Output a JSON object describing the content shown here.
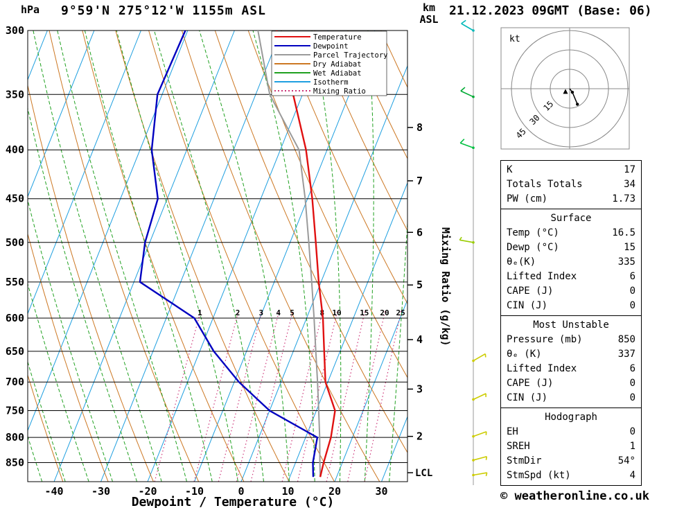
{
  "header": {
    "pressure_unit": "hPa",
    "station_title": "9°59'N 275°12'W 1155m ASL",
    "datetime_title": "21.12.2023 09GMT (Base: 06)",
    "altitude_unit_line1": "km",
    "altitude_unit_line2": "ASL"
  },
  "footer": {
    "credit": "© weatheronline.co.uk"
  },
  "colors": {
    "temperature": "#e01010",
    "dewpoint": "#0000c0",
    "parcel": "#9a9a9a",
    "dry_adiabat": "#cc7722",
    "wet_adiabat": "#1fa01f",
    "isotherm": "#1e9fe0",
    "mixing_ratio": "#cc3377",
    "pressure_line": "#000000",
    "wind_column": "#999999",
    "hodograph_grid": "#888888"
  },
  "legend": {
    "items": [
      {
        "label": "Temperature",
        "color": "#e01010",
        "dash": ""
      },
      {
        "label": "Dewpoint",
        "color": "#0000c0",
        "dash": ""
      },
      {
        "label": "Parcel Trajectory",
        "color": "#9a9a9a",
        "dash": ""
      },
      {
        "label": "Dry Adiabat",
        "color": "#cc7722",
        "dash": ""
      },
      {
        "label": "Wet Adiabat",
        "color": "#1fa01f",
        "dash": ""
      },
      {
        "label": "Isotherm",
        "color": "#1e9fe0",
        "dash": ""
      },
      {
        "label": "Mixing Ratio",
        "color": "#cc3377",
        "dash": "2,3"
      }
    ]
  },
  "axes": {
    "pressure_ticks": [
      300,
      350,
      400,
      450,
      500,
      550,
      600,
      650,
      700,
      750,
      800,
      850
    ],
    "temp_ticks": [
      -40,
      -30,
      -20,
      -10,
      0,
      10,
      20,
      30
    ],
    "x_title": "Dewpoint / Temperature (°C)",
    "mixing_ratio_axis_title": "Mixing Ratio (g/kg)",
    "km_ticks": [
      {
        "km": 8,
        "p": 379
      },
      {
        "km": 7,
        "p": 431
      },
      {
        "km": 6,
        "p": 488
      },
      {
        "km": 5,
        "p": 554
      },
      {
        "km": 4,
        "p": 632
      },
      {
        "km": 3,
        "p": 712
      },
      {
        "km": 2,
        "p": 798
      }
    ],
    "lcl": {
      "label": "LCL",
      "p": 871
    }
  },
  "chart_data": {
    "type": "skewt_sounding",
    "pressure_range_hpa": [
      300,
      890
    ],
    "temp_axis_range_c": [
      -45,
      35
    ],
    "isotherm_step_c": 10,
    "pressure_hpa": [
      880,
      850,
      800,
      750,
      700,
      650,
      600,
      550,
      500,
      450,
      400,
      350,
      300
    ],
    "temperature_c": [
      16.5,
      16,
      15.4,
      14,
      9.5,
      6.6,
      3.5,
      -0.5,
      -4.5,
      -9,
      -14.5,
      -22,
      -31
    ],
    "dewpoint_c": [
      15,
      13.7,
      12.5,
      0,
      -9,
      -17,
      -24,
      -38.7,
      -41,
      -42,
      -47.5,
      -51,
      -50.5
    ],
    "parcel_c": [
      16.5,
      15.2,
      13,
      10.5,
      7.8,
      4.8,
      1.6,
      -2,
      -6,
      -10.5,
      -16,
      -27,
      -35
    ],
    "mixing_ratio_lines_gkg": [
      1,
      2,
      3,
      4,
      5,
      8,
      10,
      15,
      20,
      25
    ]
  },
  "wind_barbs": [
    {
      "p": 300,
      "dir_deg": 300,
      "speed_kt": 10,
      "color": "#00b8b8"
    },
    {
      "p": 352,
      "dir_deg": 295,
      "speed_kt": 10,
      "color": "#00aa33"
    },
    {
      "p": 398,
      "dir_deg": 290,
      "speed_kt": 10,
      "color": "#00c040"
    },
    {
      "p": 500,
      "dir_deg": 280,
      "speed_kt": 5,
      "color": "#99cc00"
    },
    {
      "p": 665,
      "dir_deg": 60,
      "speed_kt": 5,
      "color": "#cccc00"
    },
    {
      "p": 730,
      "dir_deg": 65,
      "speed_kt": 5,
      "color": "#cccc00"
    },
    {
      "p": 798,
      "dir_deg": 70,
      "speed_kt": 5,
      "color": "#cccc00"
    },
    {
      "p": 845,
      "dir_deg": 75,
      "speed_kt": 5,
      "color": "#cccc00"
    },
    {
      "p": 876,
      "dir_deg": 80,
      "speed_kt": 5,
      "color": "#cccc00"
    }
  ],
  "hodograph": {
    "unit_label": "kt",
    "rings_kt": [
      15,
      30,
      45
    ],
    "trace_kt": [
      [
        0,
        0
      ],
      [
        2.1,
        -2.7
      ],
      [
        6,
        -12
      ]
    ],
    "storm_dir_deg": 54,
    "storm_speed_kt": 4
  },
  "stats": {
    "sections": [
      {
        "title": "",
        "rows": [
          [
            "K",
            "17"
          ],
          [
            "Totals Totals",
            "34"
          ],
          [
            "PW (cm)",
            "1.73"
          ]
        ]
      },
      {
        "title": "Surface",
        "rows": [
          [
            "Temp (°C)",
            "16.5"
          ],
          [
            "Dewp (°C)",
            "15"
          ],
          [
            "θₑ(K)",
            "335"
          ],
          [
            "Lifted Index",
            "6"
          ],
          [
            "CAPE (J)",
            "0"
          ],
          [
            "CIN (J)",
            "0"
          ]
        ]
      },
      {
        "title": "Most Unstable",
        "rows": [
          [
            "Pressure (mb)",
            "850"
          ],
          [
            "θₑ (K)",
            "337"
          ],
          [
            "Lifted Index",
            "6"
          ],
          [
            "CAPE (J)",
            "0"
          ],
          [
            "CIN (J)",
            "0"
          ]
        ]
      },
      {
        "title": "Hodograph",
        "rows": [
          [
            "EH",
            "0"
          ],
          [
            "SREH",
            "1"
          ],
          [
            "StmDir",
            "54°"
          ],
          [
            "StmSpd (kt)",
            "4"
          ]
        ]
      }
    ]
  }
}
